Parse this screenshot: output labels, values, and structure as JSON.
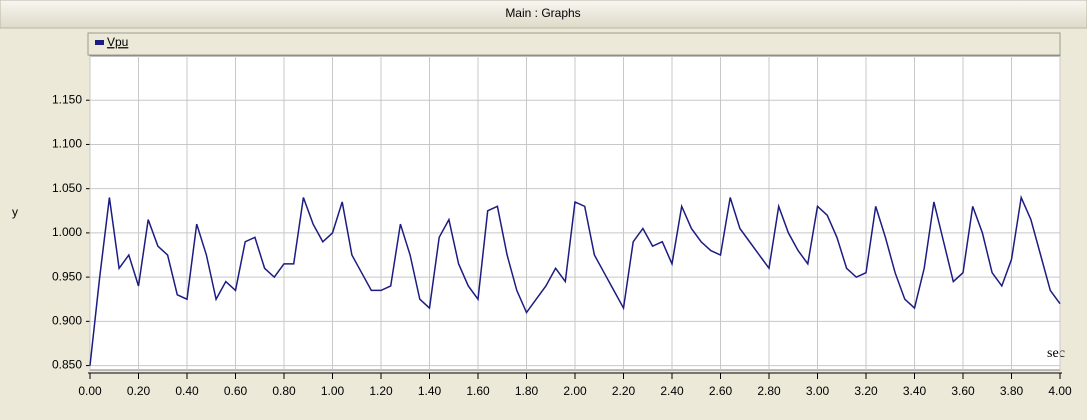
{
  "chart_data": {
    "type": "line",
    "title": "Main : Graphs",
    "ylabel": "y",
    "xlabel": "sec",
    "grid": true,
    "xlim": [
      0,
      4
    ],
    "ylim": [
      0.845,
      1.2
    ],
    "xticks": [
      {
        "value": 0,
        "label": "0.00"
      },
      {
        "value": 0.2,
        "label": "0.20"
      },
      {
        "value": 0.4,
        "label": "0.40"
      },
      {
        "value": 0.6,
        "label": "0.60"
      },
      {
        "value": 0.8,
        "label": "0.80"
      },
      {
        "value": 1,
        "label": "1.00"
      },
      {
        "value": 1.2,
        "label": "1.20"
      },
      {
        "value": 1.4,
        "label": "1.40"
      },
      {
        "value": 1.6,
        "label": "1.60"
      },
      {
        "value": 1.8,
        "label": "1.80"
      },
      {
        "value": 2,
        "label": "2.00"
      },
      {
        "value": 2.2,
        "label": "2.20"
      },
      {
        "value": 2.4,
        "label": "2.40"
      },
      {
        "value": 2.6,
        "label": "2.60"
      },
      {
        "value": 2.8,
        "label": "2.80"
      },
      {
        "value": 3,
        "label": "3.00"
      },
      {
        "value": 3.2,
        "label": "3.20"
      },
      {
        "value": 3.4,
        "label": "3.40"
      },
      {
        "value": 3.6,
        "label": "3.60"
      },
      {
        "value": 3.8,
        "label": "3.80"
      },
      {
        "value": 4,
        "label": "4.00"
      }
    ],
    "yticks": [
      {
        "value": 0.85,
        "label": "0.850"
      },
      {
        "value": 0.9,
        "label": "0.900"
      },
      {
        "value": 0.95,
        "label": "0.950"
      },
      {
        "value": 1,
        "label": "1.000"
      },
      {
        "value": 1.05,
        "label": "1.050"
      },
      {
        "value": 1.1,
        "label": "1.100"
      },
      {
        "value": 1.15,
        "label": "1.150"
      }
    ],
    "x": [
      0,
      0.04,
      0.08,
      0.12,
      0.16,
      0.2,
      0.24,
      0.28,
      0.32,
      0.36,
      0.4,
      0.44,
      0.48,
      0.52,
      0.56,
      0.6,
      0.64,
      0.68,
      0.72,
      0.76,
      0.8,
      0.84,
      0.88,
      0.92,
      0.96,
      1,
      1.04,
      1.08,
      1.12,
      1.16,
      1.2,
      1.24,
      1.28,
      1.32,
      1.36,
      1.4,
      1.44,
      1.48,
      1.52,
      1.56,
      1.6,
      1.64,
      1.68,
      1.72,
      1.76,
      1.8,
      1.84,
      1.88,
      1.92,
      1.96,
      2,
      2.04,
      2.08,
      2.12,
      2.16,
      2.2,
      2.24,
      2.28,
      2.32,
      2.36,
      2.4,
      2.44,
      2.48,
      2.52,
      2.56,
      2.6,
      2.64,
      2.68,
      2.72,
      2.76,
      2.8,
      2.84,
      2.88,
      2.92,
      2.96,
      3,
      3.04,
      3.08,
      3.12,
      3.16,
      3.2,
      3.24,
      3.28,
      3.32,
      3.36,
      3.4,
      3.44,
      3.48,
      3.52,
      3.56,
      3.6,
      3.64,
      3.68,
      3.72,
      3.76,
      3.8,
      3.84,
      3.88,
      3.92,
      3.96,
      4
    ],
    "series": [
      {
        "name": "Vpu",
        "color": "#1c1c82",
        "values": [
          0.85,
          0.95,
          1.04,
          0.96,
          0.975,
          0.94,
          1.015,
          0.985,
          0.975,
          0.93,
          0.925,
          1.01,
          0.975,
          0.925,
          0.945,
          0.935,
          0.99,
          0.995,
          0.96,
          0.95,
          0.965,
          0.965,
          1.04,
          1.01,
          0.99,
          1.0,
          1.035,
          0.975,
          0.955,
          0.935,
          0.935,
          0.94,
          1.01,
          0.975,
          0.925,
          0.915,
          0.995,
          1.015,
          0.965,
          0.94,
          0.925,
          1.025,
          1.03,
          0.975,
          0.935,
          0.91,
          0.925,
          0.94,
          0.96,
          0.945,
          1.035,
          1.03,
          0.975,
          0.955,
          0.935,
          0.915,
          0.99,
          1.005,
          0.985,
          0.99,
          0.965,
          1.03,
          1.005,
          0.99,
          0.98,
          0.975,
          1.04,
          1.005,
          0.99,
          0.975,
          0.96,
          1.03,
          1.0,
          0.98,
          0.965,
          1.03,
          1.02,
          0.995,
          0.96,
          0.95,
          0.955,
          1.03,
          0.995,
          0.955,
          0.925,
          0.915,
          0.96,
          1.035,
          0.99,
          0.945,
          0.955,
          1.03,
          1.0,
          0.955,
          0.94,
          0.97,
          1.04,
          1.015,
          0.975,
          0.935,
          0.92
        ]
      }
    ]
  }
}
